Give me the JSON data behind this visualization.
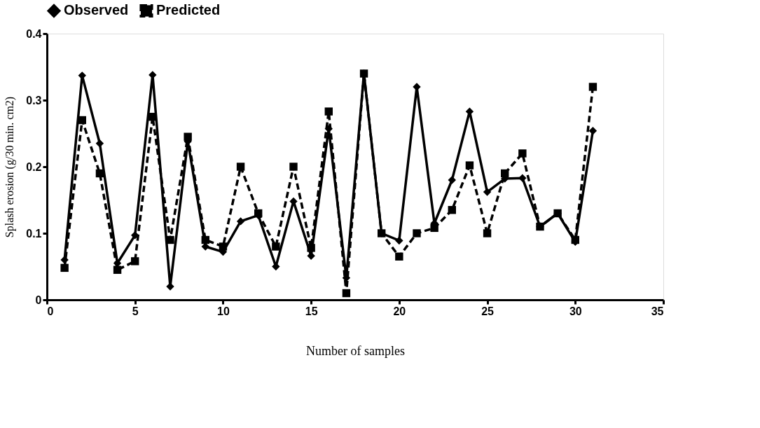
{
  "chart_data": {
    "type": "line",
    "xlabel": "Number of samples",
    "ylabel": "Splash erosion (g/30 min. cm2)",
    "x": [
      1,
      2,
      3,
      4,
      5,
      6,
      7,
      8,
      9,
      10,
      11,
      12,
      13,
      14,
      15,
      16,
      17,
      18,
      19,
      20,
      21,
      22,
      23,
      24,
      25,
      26,
      27,
      28,
      29,
      30,
      31
    ],
    "xlim": [
      0,
      35
    ],
    "xticks": [
      0,
      5,
      10,
      15,
      20,
      25,
      30,
      35
    ],
    "ylim": [
      0,
      0.4
    ],
    "yticks": [
      0,
      0.1,
      0.2,
      0.3,
      0.4
    ],
    "grid": false,
    "legend": "top",
    "series": [
      {
        "name": "Observed",
        "color": "#000000",
        "marker": "diamond",
        "line_style": "solid",
        "values": [
          0.06,
          0.337,
          0.235,
          0.055,
          0.097,
          0.338,
          0.02,
          0.238,
          0.08,
          0.072,
          0.118,
          0.127,
          0.05,
          0.148,
          0.066,
          0.257,
          0.033,
          0.34,
          0.1,
          0.089,
          0.32,
          0.115,
          0.18,
          0.283,
          0.162,
          0.182,
          0.183,
          0.11,
          0.13,
          0.087,
          0.254
        ]
      },
      {
        "name": "Predicted",
        "color": "#000000",
        "marker": "square",
        "line_style": "dashed",
        "values": [
          0.048,
          0.27,
          0.19,
          0.045,
          0.058,
          0.275,
          0.09,
          0.245,
          0.09,
          0.08,
          0.2,
          0.13,
          0.08,
          0.2,
          0.078,
          0.283,
          0.01,
          0.34,
          0.1,
          0.065,
          0.1,
          0.108,
          0.135,
          0.202,
          0.1,
          0.19,
          0.22,
          0.11,
          0.13,
          0.09,
          0.32
        ]
      }
    ]
  }
}
